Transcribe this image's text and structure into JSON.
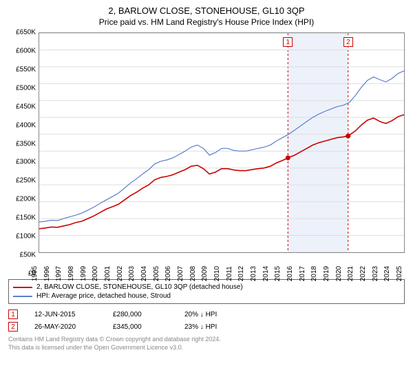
{
  "title": "2, BARLOW CLOSE, STONEHOUSE, GL10 3QP",
  "subtitle": "Price paid vs. HM Land Registry's House Price Index (HPI)",
  "chart": {
    "type": "line",
    "y_axis": {
      "min": 0,
      "max": 650000,
      "step": 50000,
      "prefix": "£",
      "format": "K",
      "tick_color": "#000",
      "grid_color": "#dddddd"
    },
    "x_axis": {
      "min": 1995,
      "max": 2025,
      "step": 1,
      "tick_color": "#000"
    },
    "background_color": "#ffffff",
    "border_color": "#888888",
    "shaded_span": {
      "from": 2015.45,
      "to": 2020.4,
      "color": "#6a8fd8"
    },
    "series": [
      {
        "name": "property",
        "label": "2, BARLOW CLOSE, STONEHOUSE, GL10 3QP (detached house)",
        "color": "#cc0000",
        "width": 1.6,
        "points": [
          [
            1995,
            70000
          ],
          [
            1995.5,
            72000
          ],
          [
            1996,
            75000
          ],
          [
            1996.5,
            74000
          ],
          [
            1997,
            78000
          ],
          [
            1997.5,
            82000
          ],
          [
            1998,
            88000
          ],
          [
            1998.5,
            92000
          ],
          [
            1999,
            100000
          ],
          [
            1999.5,
            108000
          ],
          [
            2000,
            118000
          ],
          [
            2000.5,
            128000
          ],
          [
            2001,
            135000
          ],
          [
            2001.5,
            142000
          ],
          [
            2002,
            155000
          ],
          [
            2002.5,
            168000
          ],
          [
            2003,
            178000
          ],
          [
            2003.5,
            190000
          ],
          [
            2004,
            200000
          ],
          [
            2004.5,
            215000
          ],
          [
            2005,
            222000
          ],
          [
            2005.5,
            225000
          ],
          [
            2006,
            230000
          ],
          [
            2006.5,
            238000
          ],
          [
            2007,
            245000
          ],
          [
            2007.5,
            255000
          ],
          [
            2008,
            258000
          ],
          [
            2008.5,
            248000
          ],
          [
            2009,
            232000
          ],
          [
            2009.5,
            238000
          ],
          [
            2010,
            248000
          ],
          [
            2010.5,
            248000
          ],
          [
            2011,
            244000
          ],
          [
            2011.5,
            242000
          ],
          [
            2012,
            242000
          ],
          [
            2012.5,
            245000
          ],
          [
            2013,
            248000
          ],
          [
            2013.5,
            250000
          ],
          [
            2014,
            255000
          ],
          [
            2014.5,
            265000
          ],
          [
            2015,
            272000
          ],
          [
            2015.45,
            280000
          ],
          [
            2016,
            288000
          ],
          [
            2016.5,
            298000
          ],
          [
            2017,
            308000
          ],
          [
            2017.5,
            318000
          ],
          [
            2018,
            325000
          ],
          [
            2018.5,
            330000
          ],
          [
            2019,
            335000
          ],
          [
            2019.5,
            340000
          ],
          [
            2020,
            342000
          ],
          [
            2020.4,
            345000
          ],
          [
            2021,
            360000
          ],
          [
            2021.5,
            378000
          ],
          [
            2022,
            392000
          ],
          [
            2022.5,
            398000
          ],
          [
            2023,
            388000
          ],
          [
            2023.5,
            382000
          ],
          [
            2024,
            390000
          ],
          [
            2024.5,
            402000
          ],
          [
            2025,
            408000
          ]
        ]
      },
      {
        "name": "hpi",
        "label": "HPI: Average price, detached house, Stroud",
        "color": "#5a7fc8",
        "width": 1.2,
        "points": [
          [
            1995,
            90000
          ],
          [
            1995.5,
            92000
          ],
          [
            1996,
            95000
          ],
          [
            1996.5,
            94000
          ],
          [
            1997,
            100000
          ],
          [
            1997.5,
            105000
          ],
          [
            1998,
            110000
          ],
          [
            1998.5,
            116000
          ],
          [
            1999,
            125000
          ],
          [
            1999.5,
            134000
          ],
          [
            2000,
            145000
          ],
          [
            2000.5,
            155000
          ],
          [
            2001,
            165000
          ],
          [
            2001.5,
            175000
          ],
          [
            2002,
            190000
          ],
          [
            2002.5,
            205000
          ],
          [
            2003,
            218000
          ],
          [
            2003.5,
            232000
          ],
          [
            2004,
            245000
          ],
          [
            2004.5,
            262000
          ],
          [
            2005,
            270000
          ],
          [
            2005.5,
            274000
          ],
          [
            2006,
            280000
          ],
          [
            2006.5,
            290000
          ],
          [
            2007,
            300000
          ],
          [
            2007.5,
            312000
          ],
          [
            2008,
            318000
          ],
          [
            2008.5,
            308000
          ],
          [
            2009,
            288000
          ],
          [
            2009.5,
            296000
          ],
          [
            2010,
            308000
          ],
          [
            2010.5,
            308000
          ],
          [
            2011,
            302000
          ],
          [
            2011.5,
            300000
          ],
          [
            2012,
            300000
          ],
          [
            2012.5,
            304000
          ],
          [
            2013,
            308000
          ],
          [
            2013.5,
            312000
          ],
          [
            2014,
            318000
          ],
          [
            2014.5,
            330000
          ],
          [
            2015,
            340000
          ],
          [
            2015.5,
            350000
          ],
          [
            2016,
            362000
          ],
          [
            2016.5,
            375000
          ],
          [
            2017,
            388000
          ],
          [
            2017.5,
            400000
          ],
          [
            2018,
            410000
          ],
          [
            2018.5,
            418000
          ],
          [
            2019,
            425000
          ],
          [
            2019.5,
            432000
          ],
          [
            2020,
            436000
          ],
          [
            2020.5,
            444000
          ],
          [
            2021,
            465000
          ],
          [
            2021.5,
            490000
          ],
          [
            2022,
            510000
          ],
          [
            2022.5,
            520000
          ],
          [
            2023,
            512000
          ],
          [
            2023.5,
            505000
          ],
          [
            2024,
            515000
          ],
          [
            2024.5,
            530000
          ],
          [
            2025,
            538000
          ]
        ]
      }
    ],
    "sale_markers": [
      {
        "n": "1",
        "x": 2015.45,
        "y": 280000,
        "color": "#cc0000"
      },
      {
        "n": "2",
        "x": 2020.4,
        "y": 345000,
        "color": "#cc0000"
      }
    ]
  },
  "legend_title": "",
  "sales": [
    {
      "n": "1",
      "date": "12-JUN-2015",
      "price": "£280,000",
      "delta": "20% ↓ HPI"
    },
    {
      "n": "2",
      "date": "26-MAY-2020",
      "price": "£345,000",
      "delta": "23% ↓ HPI"
    }
  ],
  "footer_line1": "Contains HM Land Registry data © Crown copyright and database right 2024.",
  "footer_line2": "This data is licensed under the Open Government Licence v3.0."
}
